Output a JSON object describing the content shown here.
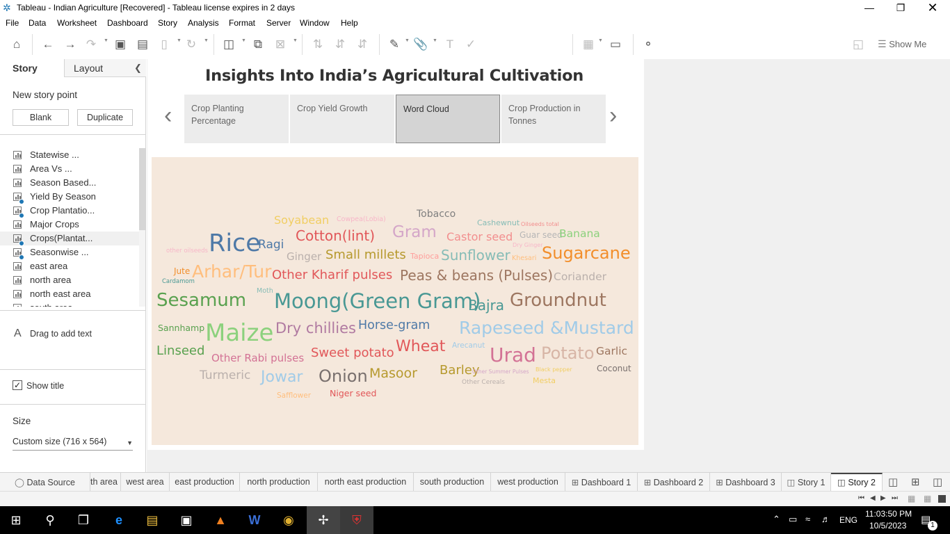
{
  "window": {
    "title": "Tableau - Indian Agriculture [Recovered] - Tableau license expires in 2 days",
    "controls": [
      "minimize",
      "restore",
      "close"
    ]
  },
  "menu": [
    "File",
    "Data",
    "Worksheet",
    "Dashboard",
    "Story",
    "Analysis",
    "Format",
    "Server",
    "Window",
    "Help"
  ],
  "toolbar": {
    "show_me": "Show Me"
  },
  "left_pane": {
    "tab_story": "Story",
    "tab_layout": "Layout",
    "new_story_point": "New story point",
    "blank_button": "Blank",
    "duplicate_button": "Duplicate",
    "sheets": [
      {
        "label": "Statewise ...",
        "used": false
      },
      {
        "label": "Area Vs ...",
        "used": false
      },
      {
        "label": "Season Based...",
        "used": false
      },
      {
        "label": "Yield By Season",
        "used": true
      },
      {
        "label": "Crop Plantatio...",
        "used": true
      },
      {
        "label": "Major Crops",
        "used": false
      },
      {
        "label": "Crops(Plantat...",
        "used": true,
        "selected": true
      },
      {
        "label": "Seasonwise ...",
        "used": true
      },
      {
        "label": "east area",
        "used": false
      },
      {
        "label": "north area",
        "used": false
      },
      {
        "label": "north east area",
        "used": false
      },
      {
        "label": "south area",
        "used": false
      }
    ],
    "drag_text": "Drag to add text",
    "show_title": "Show title",
    "show_title_checked": true,
    "size_label": "Size",
    "size_value": "Custom size (716 x 564)"
  },
  "story": {
    "title": "Insights Into India’s Agricultural Cultivation",
    "points": [
      {
        "label": "Crop Planting Percentage",
        "active": false
      },
      {
        "label": "Crop Yield Growth",
        "active": false
      },
      {
        "label": "Word Cloud",
        "active": true
      },
      {
        "label": "Crop Production in Tonnes",
        "active": false
      }
    ]
  },
  "word_cloud": [
    {
      "t": "Soyabean",
      "c": "#f1ce63"
    },
    {
      "t": "Cowpea(Lobia)",
      "c": "#f7b6c8"
    },
    {
      "t": "Tobacco",
      "c": "#7f7f7f"
    },
    {
      "t": "Cashewnut",
      "c": "#86bcb6"
    },
    {
      "t": "Oilseeds total",
      "c": "#f28e8e"
    },
    {
      "t": "Rice",
      "c": "#4e79a7"
    },
    {
      "t": "Ragi",
      "c": "#4e79a7"
    },
    {
      "t": "Cotton(lint)",
      "c": "#e15759"
    },
    {
      "t": "Gram",
      "c": "#d4a6c8"
    },
    {
      "t": "Castor seed",
      "c": "#f28e8e"
    },
    {
      "t": "Guar seed",
      "c": "#b6b6b6"
    },
    {
      "t": "Banana",
      "c": "#8cd17d"
    },
    {
      "t": "Dry Ginger",
      "c": "#f7b6c8"
    },
    {
      "t": "other oilseeds",
      "c": "#f7b6c8"
    },
    {
      "t": "Ginger",
      "c": "#bab0ac"
    },
    {
      "t": "Small millets",
      "c": "#b6992d"
    },
    {
      "t": "Tapioca",
      "c": "#ff9d9a"
    },
    {
      "t": "Sunflower",
      "c": "#86bcb6"
    },
    {
      "t": "Khesari",
      "c": "#ffbe7d"
    },
    {
      "t": "Sugarcane",
      "c": "#f28e2b"
    },
    {
      "t": "Jute",
      "c": "#f28e2b"
    },
    {
      "t": "Arhar/Tur",
      "c": "#ffbe7d"
    },
    {
      "t": "Other Kharif pulses",
      "c": "#e15759"
    },
    {
      "t": "Peas & beans (Pulses)",
      "c": "#9d7660"
    },
    {
      "t": "Coriander",
      "c": "#bab0ac"
    },
    {
      "t": "Cardamom",
      "c": "#499894"
    },
    {
      "t": "Moth",
      "c": "#86bcb6"
    },
    {
      "t": "Sesamum",
      "c": "#59a14f"
    },
    {
      "t": "Moong(Green Gram)",
      "c": "#499894"
    },
    {
      "t": "Bajra",
      "c": "#499894"
    },
    {
      "t": "Groundnut",
      "c": "#9d7660"
    },
    {
      "t": "Sannhamp",
      "c": "#59a14f"
    },
    {
      "t": "Maize",
      "c": "#8cd17d"
    },
    {
      "t": "Dry chillies",
      "c": "#b07aa1"
    },
    {
      "t": "Horse-gram",
      "c": "#4e79a7"
    },
    {
      "t": "Rapeseed &Mustard",
      "c": "#a0cbe8"
    },
    {
      "t": "Linseed",
      "c": "#59a14f"
    },
    {
      "t": "Arecanut",
      "c": "#a0cbe8"
    },
    {
      "t": "Wheat",
      "c": "#e15759"
    },
    {
      "t": "Urad",
      "c": "#d37295"
    },
    {
      "t": "Potato",
      "c": "#d7b5a6"
    },
    {
      "t": "Garlic",
      "c": "#9d7660"
    },
    {
      "t": "Other Rabi pulses",
      "c": "#d37295"
    },
    {
      "t": "Sweet potato",
      "c": "#e15759"
    },
    {
      "t": "Coconut",
      "c": "#79706e"
    },
    {
      "t": "Turmeric",
      "c": "#bab0ac"
    },
    {
      "t": "Jowar",
      "c": "#a0cbe8"
    },
    {
      "t": "Onion",
      "c": "#79706e"
    },
    {
      "t": "Masoor",
      "c": "#b6992d"
    },
    {
      "t": "Barley",
      "c": "#b6992d"
    },
    {
      "t": "Other Summer Pulses",
      "c": "#d4a6c8"
    },
    {
      "t": "Black pepper",
      "c": "#f1ce63"
    },
    {
      "t": "Other Cereals",
      "c": "#bab0ac"
    },
    {
      "t": "Mesta",
      "c": "#f1ce63"
    },
    {
      "t": "Safflower",
      "c": "#ffbe7d"
    },
    {
      "t": "Niger seed",
      "c": "#e15759"
    }
  ],
  "sheet_tabs": [
    {
      "label": "Data Source",
      "icon": "database-icon"
    },
    {
      "label": "th area"
    },
    {
      "label": "west area"
    },
    {
      "label": "east production"
    },
    {
      "label": "north production"
    },
    {
      "label": "north east production"
    },
    {
      "label": "south production"
    },
    {
      "label": "west production"
    },
    {
      "label": "Dashboard 1",
      "icon": "dashboard-icon"
    },
    {
      "label": "Dashboard 2",
      "icon": "dashboard-icon"
    },
    {
      "label": "Dashboard 3",
      "icon": "dashboard-icon"
    },
    {
      "label": "Story 1",
      "icon": "story-icon"
    },
    {
      "label": "Story 2",
      "icon": "story-icon",
      "active": true
    }
  ],
  "taskbar": {
    "language": "ENG",
    "time": "11:03:50 PM",
    "date": "10/5/2023",
    "notifications": "1"
  }
}
